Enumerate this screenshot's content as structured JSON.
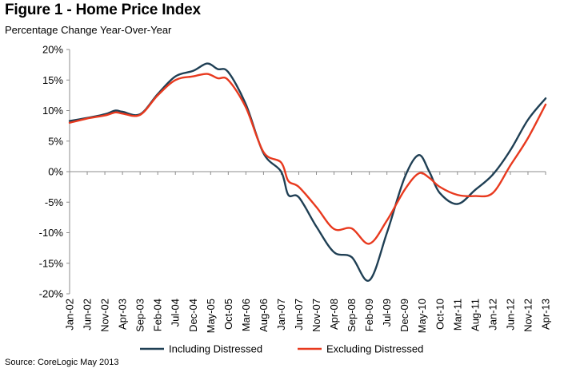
{
  "header": {
    "title": "Figure 1 - Home Price Index",
    "subtitle": "Percentage Change Year-Over-Year"
  },
  "footer": {
    "source": "Source: CoreLogic May 2013"
  },
  "chart_data": {
    "type": "line",
    "title": "Figure 1 - Home Price Index",
    "subtitle": "Percentage Change Year-Over-Year",
    "xlabel": "",
    "ylabel": "",
    "ylim": [
      -20,
      20
    ],
    "yticks": [
      20,
      15,
      10,
      5,
      0,
      -5,
      -10,
      -15,
      -20
    ],
    "ytick_labels": [
      "20%",
      "15%",
      "10%",
      "5%",
      "0%",
      "-5%",
      "-10%",
      "-15%",
      "-20%"
    ],
    "x_start": "Jan-02",
    "x_end": "Apr-13",
    "xtick_labels": [
      "Jan-02",
      "Jun-02",
      "Nov-02",
      "Apr-03",
      "Sep-03",
      "Feb-04",
      "Jul-04",
      "Dec-04",
      "May-05",
      "Oct-05",
      "Mar-06",
      "Aug-06",
      "Jan-07",
      "Jun-07",
      "Nov-07",
      "Apr-08",
      "Sep-08",
      "Feb-09",
      "Jul-09",
      "Dec-09",
      "May-10",
      "Oct-10",
      "Mar-11",
      "Aug-11",
      "Jan-12",
      "Jun-12",
      "Nov-12",
      "Apr-13"
    ],
    "grid": false,
    "legend_position": "bottom",
    "series": [
      {
        "name": "Including Distressed",
        "color": "#1f3f54",
        "points": [
          [
            "Jan-02",
            8.3
          ],
          [
            "Jun-02",
            8.8
          ],
          [
            "Nov-02",
            9.4
          ],
          [
            "Feb-03",
            10.0
          ],
          [
            "Apr-03",
            9.8
          ],
          [
            "Sep-03",
            9.4
          ],
          [
            "Feb-04",
            12.7
          ],
          [
            "Jul-04",
            15.6
          ],
          [
            "Dec-04",
            16.5
          ],
          [
            "Apr-05",
            17.7
          ],
          [
            "Jul-05",
            16.8
          ],
          [
            "Oct-05",
            16.3
          ],
          [
            "Mar-06",
            11.0
          ],
          [
            "Aug-06",
            3.0
          ],
          [
            "Jan-07",
            0.0
          ],
          [
            "Mar-07",
            -3.8
          ],
          [
            "Jun-07",
            -4.2
          ],
          [
            "Nov-07",
            -9.0
          ],
          [
            "Apr-08",
            -13.2
          ],
          [
            "Sep-08",
            -14.0
          ],
          [
            "Feb-09",
            -17.8
          ],
          [
            "Jul-09",
            -10.0
          ],
          [
            "Dec-09",
            -1.0
          ],
          [
            "Apr-10",
            2.7
          ],
          [
            "Jul-10",
            0.0
          ],
          [
            "Oct-10",
            -3.5
          ],
          [
            "Mar-11",
            -5.3
          ],
          [
            "Aug-11",
            -3.0
          ],
          [
            "Jan-12",
            -0.5
          ],
          [
            "Jun-12",
            3.5
          ],
          [
            "Nov-12",
            8.5
          ],
          [
            "Apr-13",
            12.0
          ]
        ]
      },
      {
        "name": "Excluding Distressed",
        "color": "#e8391e",
        "points": [
          [
            "Jan-02",
            8.0
          ],
          [
            "Jun-02",
            8.7
          ],
          [
            "Nov-02",
            9.2
          ],
          [
            "Feb-03",
            9.7
          ],
          [
            "Apr-03",
            9.5
          ],
          [
            "Sep-03",
            9.3
          ],
          [
            "Feb-04",
            12.5
          ],
          [
            "Jul-04",
            15.0
          ],
          [
            "Dec-04",
            15.6
          ],
          [
            "Apr-05",
            16.0
          ],
          [
            "Jul-05",
            15.3
          ],
          [
            "Oct-05",
            15.0
          ],
          [
            "Mar-06",
            10.5
          ],
          [
            "Aug-06",
            3.2
          ],
          [
            "Jan-07",
            1.5
          ],
          [
            "Mar-07",
            -1.5
          ],
          [
            "Jun-07",
            -2.5
          ],
          [
            "Nov-07",
            -5.8
          ],
          [
            "Apr-08",
            -9.4
          ],
          [
            "Sep-08",
            -9.3
          ],
          [
            "Feb-09",
            -11.8
          ],
          [
            "Jul-09",
            -8.0
          ],
          [
            "Dec-09",
            -3.0
          ],
          [
            "Apr-10",
            -0.3
          ],
          [
            "Jul-10",
            -1.0
          ],
          [
            "Oct-10",
            -2.5
          ],
          [
            "Mar-11",
            -3.8
          ],
          [
            "Aug-11",
            -4.0
          ],
          [
            "Jan-12",
            -3.5
          ],
          [
            "Jun-12",
            1.0
          ],
          [
            "Nov-12",
            5.5
          ],
          [
            "Apr-13",
            11.0
          ]
        ]
      }
    ]
  }
}
